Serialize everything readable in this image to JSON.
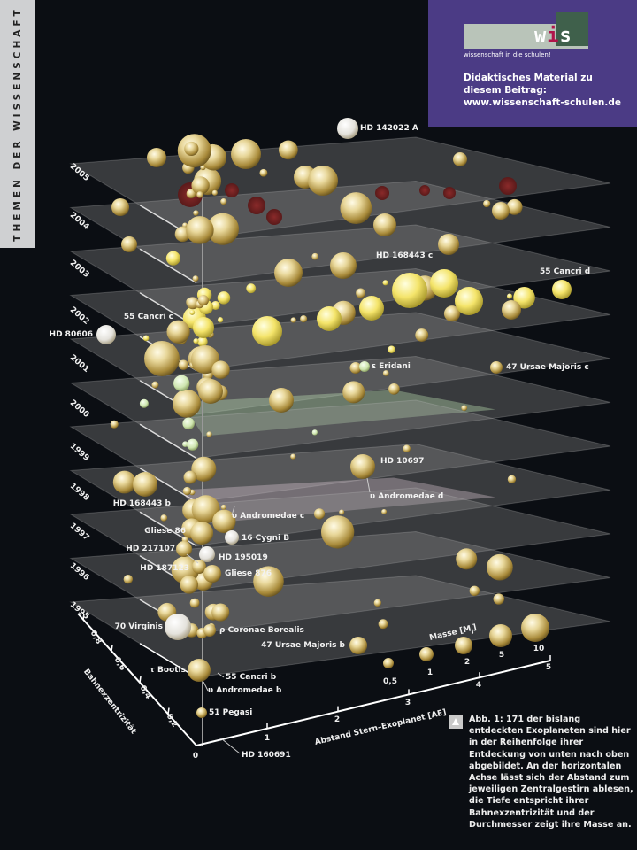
{
  "section_strip": "THEMEN DER WISSENSCHAFT",
  "promo": {
    "logo": "wis",
    "tagline": "wissenschaft in die schulen!",
    "lines": [
      "Didaktisches Material zu",
      "diesem Beitrag:",
      "www.wissenschaft-schulen.de"
    ],
    "background": "#4b3b85"
  },
  "years": [
    "2005",
    "2004",
    "2003",
    "2002",
    "2001",
    "2000",
    "1999",
    "1998",
    "1997",
    "1996",
    "1995"
  ],
  "axes": {
    "distance": {
      "title": "Abstand Stern–Exoplanet [AE]",
      "ticks": [
        "0",
        "1",
        "2",
        "3",
        "4",
        "5"
      ]
    },
    "eccentricity": {
      "title": "Bahnexzentrizität",
      "ticks": [
        "0,2",
        "0,4",
        "0,6",
        "0,8"
      ]
    },
    "mass": {
      "title": "Masse [M",
      "unit_sub": "J",
      "title_end": "]",
      "ticks": [
        "0,5",
        "1",
        "2",
        "5",
        "10"
      ]
    }
  },
  "planets": [
    {
      "name": "HD 142022 A"
    },
    {
      "name": "HD 168443 c"
    },
    {
      "name": "55 Cancri d"
    },
    {
      "name": "55 Cancri c"
    },
    {
      "name": "HD 80606"
    },
    {
      "name": "ε Eridani"
    },
    {
      "name": "47 Ursae Majoris c"
    },
    {
      "name": "HD 10697"
    },
    {
      "name": "υ Andromedae d"
    },
    {
      "name": "HD 168443 b"
    },
    {
      "name": "υ Andromedae c"
    },
    {
      "name": "Gliese 86"
    },
    {
      "name": "16 Cygni B"
    },
    {
      "name": "HD 217107"
    },
    {
      "name": "HD 195019"
    },
    {
      "name": "HD 187123"
    },
    {
      "name": "Gliese 876"
    },
    {
      "name": "70 Virginis"
    },
    {
      "name": "ρ Coronae Borealis"
    },
    {
      "name": "47 Ursae Majoris b"
    },
    {
      "name": "τ Bootis"
    },
    {
      "name": "55 Cancri b"
    },
    {
      "name": "υ Andromedae b"
    },
    {
      "name": "51 Pegasi"
    },
    {
      "name": "HD 160691"
    }
  ],
  "caption": "Abb. 1: 171 der bislang entdeckten Exoplaneten sind hier in der Reihenfolge ihrer Entdeckung von unten nach oben abgebildet. An der horizontalen Achse lässt sich der Abstand zum jeweiligen Zentralgestirn ablesen, die Tiefe entspricht ihrer Bahnexzentrizität und der Durchmesser zeigt ihre Masse an."
}
